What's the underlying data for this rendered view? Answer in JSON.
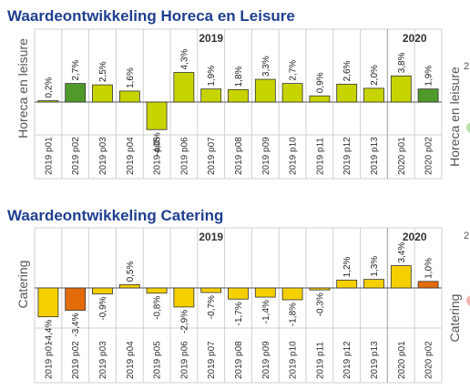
{
  "colors": {
    "title": "#1f3f8f",
    "yellow_green": "#c8d400",
    "green": "#4f9a2a",
    "yellow": "#f5d000",
    "orange": "#e36c0a",
    "grid": "#d0d0d0",
    "edge_green": "#b6e3a8",
    "edge_red": "#f4b6b6"
  },
  "edge_digits": [
    "2",
    "2"
  ],
  "chart_data": [
    {
      "type": "bar",
      "title": "Waardeontwikkeling Horeca en Leisure",
      "ylabel": "Horeca en leisure",
      "right_label": "Horeca en leisure",
      "year_groups": [
        {
          "label": "2019",
          "start": 0,
          "end": 12
        },
        {
          "label": "2020",
          "start": 13,
          "end": 14
        }
      ],
      "categories": [
        "2019 p01",
        "2019 p02",
        "2019 p03",
        "2019 p04",
        "2019 p05",
        "2019 p06",
        "2019 p07",
        "2019 p08",
        "2019 p09",
        "2019 p10",
        "2019 p11",
        "2019 p12",
        "2019 p13",
        "2020 p01",
        "2020 p02"
      ],
      "values": [
        0.2,
        2.7,
        2.5,
        1.6,
        -4.0,
        4.3,
        1.9,
        1.8,
        3.3,
        2.7,
        0.9,
        2.6,
        2.0,
        3.8,
        1.9
      ],
      "value_labels": [
        "0,2%",
        "2,7%",
        "2,5%",
        "1,6%",
        "-4,0%",
        "4,3%",
        "1,9%",
        "1,8%",
        "3,3%",
        "2,7%",
        "0,9%",
        "2,6%",
        "2,0%",
        "3,8%",
        "1,9%"
      ],
      "bar_colors": [
        "#c8d400",
        "#4f9a2a",
        "#c8d400",
        "#c8d400",
        "#c8d400",
        "#c8d400",
        "#c8d400",
        "#c8d400",
        "#c8d400",
        "#c8d400",
        "#c8d400",
        "#c8d400",
        "#c8d400",
        "#c8d400",
        "#4f9a2a"
      ],
      "ylim": [
        -4.5,
        4.8
      ]
    },
    {
      "type": "bar",
      "title": "Waardeontwikkeling Catering",
      "ylabel": "Catering",
      "right_label": "Catering",
      "year_groups": [
        {
          "label": "2019",
          "start": 0,
          "end": 12
        },
        {
          "label": "2020",
          "start": 13,
          "end": 14
        }
      ],
      "categories": [
        "2019 p01",
        "2019 p02",
        "2019 p03",
        "2019 p04",
        "2019 p05",
        "2019 p06",
        "2019 p07",
        "2019 p08",
        "2019 p09",
        "2019 p10",
        "2019 p11",
        "2019 p12",
        "2019 p13",
        "2020 p01",
        "2020 p02"
      ],
      "values": [
        -4.4,
        -3.4,
        -0.9,
        0.5,
        -0.8,
        -2.9,
        -0.7,
        -1.7,
        -1.4,
        -1.8,
        -0.3,
        1.2,
        1.3,
        3.4,
        1.0
      ],
      "value_labels": [
        "-4,4%",
        "-3,4%",
        "-0,9%",
        "0,5%",
        "-0,8%",
        "-2,9%",
        "-0,7%",
        "-1,7%",
        "-1,4%",
        "-1,8%",
        "-0,3%",
        "1,2%",
        "1,3%",
        "3,4%",
        "1,0%"
      ],
      "bar_colors": [
        "#f5d000",
        "#e36c0a",
        "#f5d000",
        "#f5d000",
        "#f5d000",
        "#f5d000",
        "#f5d000",
        "#f5d000",
        "#f5d000",
        "#f5d000",
        "#f5d000",
        "#f5d000",
        "#f5d000",
        "#f5d000",
        "#e36c0a"
      ],
      "ylim": [
        -4.8,
        5.0
      ]
    }
  ]
}
